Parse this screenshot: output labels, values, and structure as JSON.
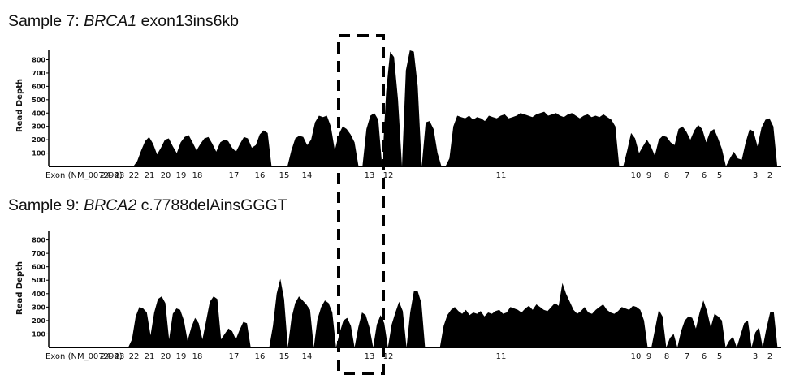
{
  "chart_data": [
    {
      "type": "area",
      "title_prefix": "Sample 7: ",
      "title_gene": "BRCA1",
      "title_suffix": " exon13ins6kb",
      "ylabel": "Read Depth",
      "yticks": [
        "100",
        "200",
        "300",
        "400",
        "500",
        "600",
        "700",
        "800"
      ],
      "ylim": [
        0,
        870
      ],
      "exon_axis_label": "Exon (NM_007294)",
      "exon_labels": [
        "24",
        "23",
        "22",
        "21",
        "20",
        "19",
        "18",
        "17",
        "16",
        "15",
        "14",
        "13",
        "12",
        "11",
        "10",
        "9",
        "8",
        "7",
        "6",
        "5",
        "3",
        "2"
      ],
      "series": [
        {
          "values": [
            0,
            0,
            0,
            0,
            0,
            0,
            0,
            0,
            0,
            0,
            0,
            0,
            0,
            0,
            0,
            0,
            0,
            0,
            0,
            0,
            0,
            0,
            40,
            120,
            190,
            220,
            170,
            90,
            140,
            200,
            210,
            150,
            100,
            180,
            220,
            235,
            180,
            120,
            170,
            210,
            220,
            170,
            110,
            180,
            200,
            190,
            140,
            110,
            170,
            220,
            210,
            140,
            160,
            240,
            270,
            250,
            0,
            0,
            0,
            0,
            0,
            120,
            210,
            230,
            220,
            160,
            200,
            330,
            380,
            370,
            380,
            300,
            120,
            240,
            300,
            280,
            240,
            180,
            0,
            0,
            280,
            380,
            400,
            350,
            0,
            560,
            860,
            820,
            500,
            0,
            720,
            870,
            860,
            600,
            0,
            330,
            340,
            280,
            100,
            0,
            0,
            60,
            300,
            380,
            370,
            360,
            380,
            350,
            370,
            360,
            340,
            380,
            370,
            360,
            380,
            390,
            360,
            370,
            380,
            400,
            390,
            380,
            370,
            390,
            400,
            410,
            380,
            390,
            400,
            380,
            370,
            390,
            400,
            380,
            360,
            380,
            390,
            370,
            380,
            370,
            390,
            370,
            350,
            300,
            0,
            0,
            120,
            250,
            210,
            100,
            150,
            200,
            150,
            80,
            200,
            230,
            220,
            180,
            160,
            280,
            300,
            260,
            200,
            270,
            310,
            280,
            180,
            260,
            280,
            210,
            130,
            0,
            60,
            110,
            60,
            50,
            180,
            280,
            260,
            150,
            290,
            350,
            360,
            300,
            0,
            0
          ]
        }
      ]
    },
    {
      "type": "area",
      "title_prefix": "Sample 9: ",
      "title_gene": "BRCA2",
      "title_suffix": " c.7788delAinsGGGT",
      "ylabel": "Read Depth",
      "yticks": [
        "100",
        "200",
        "300",
        "400",
        "500",
        "600",
        "700",
        "800"
      ],
      "ylim": [
        0,
        870
      ],
      "exon_axis_label": "Exon (NM_007294)",
      "exon_labels": [
        "24",
        "23",
        "22",
        "21",
        "20",
        "19",
        "18",
        "17",
        "16",
        "15",
        "14",
        "13",
        "12",
        "11",
        "10",
        "9",
        "8",
        "7",
        "6",
        "5",
        "3",
        "2"
      ],
      "series": [
        {
          "values": [
            0,
            0,
            0,
            0,
            0,
            0,
            0,
            0,
            0,
            0,
            0,
            0,
            0,
            0,
            0,
            0,
            0,
            0,
            0,
            0,
            0,
            0,
            60,
            230,
            300,
            290,
            260,
            90,
            260,
            360,
            380,
            330,
            60,
            250,
            290,
            280,
            200,
            50,
            150,
            220,
            180,
            60,
            200,
            340,
            380,
            360,
            60,
            100,
            140,
            120,
            60,
            130,
            190,
            180,
            0,
            0,
            0,
            0,
            0,
            0,
            160,
            400,
            510,
            360,
            0,
            220,
            330,
            380,
            350,
            320,
            280,
            0,
            210,
            300,
            350,
            330,
            260,
            0,
            110,
            200,
            220,
            160,
            0,
            150,
            260,
            240,
            150,
            0,
            170,
            240,
            180,
            0,
            170,
            260,
            340,
            270,
            0,
            260,
            420,
            420,
            330,
            0,
            0,
            0,
            0,
            0,
            160,
            240,
            280,
            300,
            270,
            250,
            280,
            240,
            260,
            250,
            270,
            230,
            260,
            250,
            270,
            280,
            250,
            260,
            300,
            290,
            280,
            260,
            290,
            310,
            280,
            320,
            300,
            280,
            270,
            300,
            330,
            310,
            480,
            400,
            340,
            280,
            250,
            270,
            300,
            260,
            250,
            280,
            300,
            320,
            280,
            260,
            250,
            270,
            300,
            290,
            280,
            310,
            300,
            280,
            200,
            0,
            0,
            140,
            280,
            230,
            0,
            70,
            100,
            0,
            120,
            200,
            230,
            220,
            140,
            260,
            350,
            270,
            150,
            250,
            230,
            200,
            0,
            50,
            80,
            0,
            90,
            180,
            200,
            0,
            110,
            150,
            0,
            140,
            260,
            260,
            0,
            0
          ]
        }
      ]
    }
  ]
}
